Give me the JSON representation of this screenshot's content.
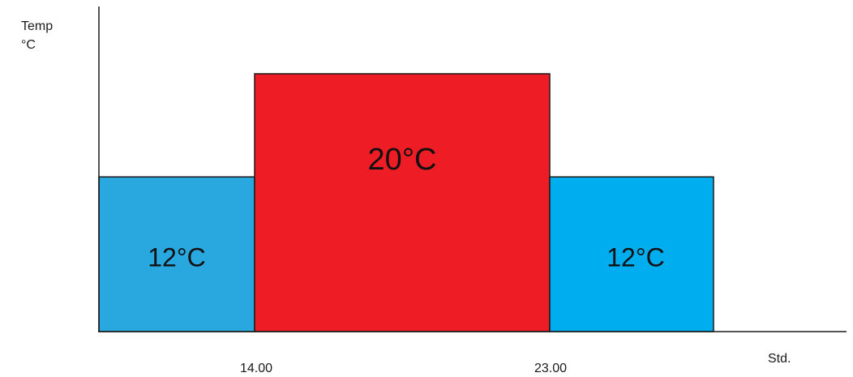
{
  "chart_data": {
    "type": "bar",
    "ylabel_lines": [
      "Temp",
      "°C"
    ],
    "xlabel": "Std.",
    "x_ticks": [
      "14.00",
      "23.00"
    ],
    "bars": [
      {
        "label": "12°C",
        "value": 12,
        "color": "#29a8e0"
      },
      {
        "label": "20°C",
        "value": 20,
        "color": "#ee1c25"
      },
      {
        "label": "12°C",
        "value": 12,
        "color": "#00aeef"
      }
    ],
    "grid": false,
    "legend": "none"
  }
}
